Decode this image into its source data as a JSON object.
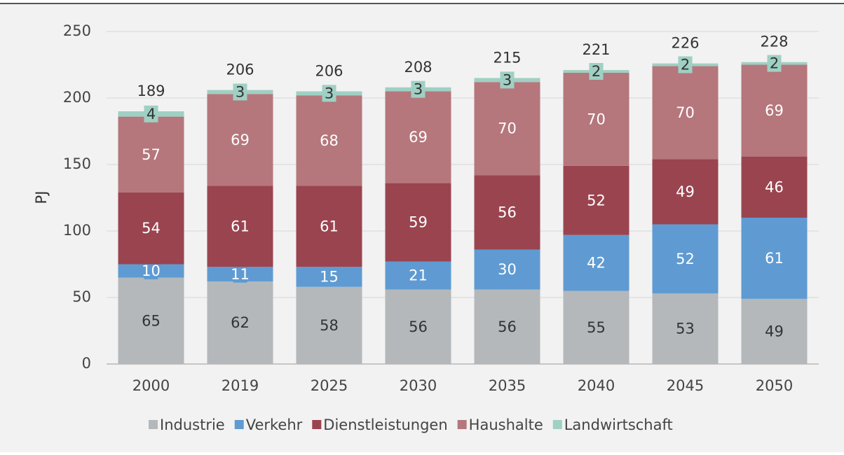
{
  "chart_data": {
    "type": "stacked_bar",
    "y_label": "PJ",
    "categories": [
      "2000",
      "2019",
      "2025",
      "2030",
      "2035",
      "2040",
      "2045",
      "2050"
    ],
    "series": [
      {
        "name": "Industrie",
        "color": "#b4b8bb",
        "values": [
          65,
          62,
          58,
          56,
          56,
          55,
          53,
          49
        ]
      },
      {
        "name": "Verkehr",
        "color": "#5f9bd2",
        "values": [
          10,
          11,
          15,
          21,
          30,
          42,
          52,
          61
        ]
      },
      {
        "name": "Dienstleistungen",
        "color": "#9a4450",
        "values": [
          54,
          61,
          61,
          59,
          56,
          52,
          49,
          46
        ]
      },
      {
        "name": "Haushalte",
        "color": "#b5777c",
        "values": [
          57,
          69,
          68,
          69,
          70,
          70,
          70,
          69
        ]
      },
      {
        "name": "Landwirtschaft",
        "color": "#9fd0c3",
        "values": [
          4,
          3,
          3,
          3,
          3,
          2,
          2,
          2
        ]
      }
    ],
    "totals": [
      189,
      206,
      206,
      208,
      215,
      221,
      226,
      228
    ],
    "ylim": [
      0,
      250
    ],
    "yticks": [
      0,
      50,
      100,
      150,
      200,
      250
    ],
    "grid": true,
    "legend": "bottom"
  }
}
